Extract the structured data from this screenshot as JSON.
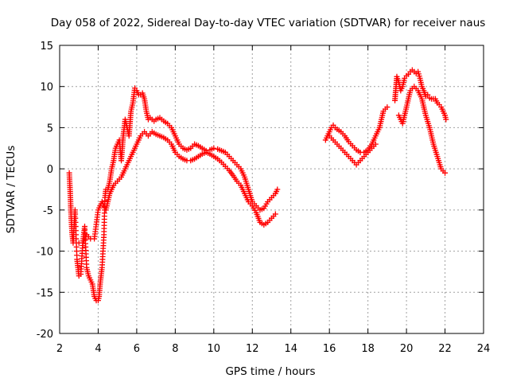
{
  "chart_data": {
    "type": "scatter",
    "title": "Day 058 of 2022, Sidereal Day-to-day VTEC variation (SDTVAR) for receiver naus",
    "xlabel": "GPS time / hours",
    "ylabel": "SDTVAR / TECUs",
    "xlim": [
      2,
      24
    ],
    "ylim": [
      -20,
      15
    ],
    "xticks": [
      2,
      4,
      6,
      8,
      10,
      12,
      14,
      16,
      18,
      20,
      22,
      24
    ],
    "yticks": [
      -20,
      -15,
      -10,
      -5,
      0,
      5,
      10,
      15
    ],
    "grid": true,
    "marker": "+",
    "color": "#ff0000",
    "series": [
      {
        "name": "segment-1",
        "x": [
          2.5,
          2.55,
          2.6,
          2.65,
          2.7,
          2.75,
          2.8,
          2.9,
          3.0,
          3.1,
          3.2,
          3.3,
          3.4,
          3.5,
          3.6,
          3.7,
          3.8,
          3.9,
          4.0,
          4.05,
          4.1,
          4.2,
          4.3,
          4.35,
          4.4,
          4.5,
          4.6,
          4.7,
          4.8,
          4.9,
          5.0,
          5.1,
          5.2,
          5.3,
          5.4,
          5.5,
          5.6,
          5.7,
          5.8,
          5.9,
          6.0,
          6.1,
          6.2,
          6.3,
          6.4,
          6.5,
          6.6,
          6.7,
          6.8,
          6.9,
          7.0,
          7.2,
          7.4,
          7.6,
          7.8,
          8.0,
          8.2,
          8.4,
          8.6,
          8.8,
          9.0,
          9.2,
          9.4,
          9.6,
          9.8,
          10.0,
          10.2,
          10.4,
          10.6,
          10.8,
          11.0,
          11.2,
          11.4,
          11.6,
          11.8,
          12.0,
          12.2,
          12.4,
          12.6,
          12.8,
          13.0,
          13.2,
          13.3
        ],
        "y": [
          -0.5,
          -3,
          -6,
          -8,
          -9,
          -7,
          -5,
          -11,
          -13,
          -12.8,
          -9,
          -7,
          -12,
          -13,
          -13.5,
          -14,
          -15.5,
          -16,
          -16,
          -15.5,
          -14,
          -12,
          -8,
          -3.5,
          -2.5,
          -2.5,
          -1.5,
          0,
          1,
          2.5,
          3,
          3.5,
          1,
          4,
          6,
          5,
          4,
          7,
          8,
          9.8,
          9.5,
          9,
          9,
          9.2,
          8.5,
          7,
          6,
          6.2,
          6,
          5.8,
          6,
          6.2,
          5.8,
          5.5,
          5,
          4,
          3,
          2.5,
          2.3,
          2.5,
          3,
          2.8,
          2.5,
          2.2,
          2.3,
          2.5,
          2.4,
          2.2,
          2,
          1.5,
          1,
          0.5,
          0,
          -1,
          -2.5,
          -4,
          -4.5,
          -5,
          -4.8,
          -4,
          -3.5,
          -3,
          -2.5
        ]
      },
      {
        "name": "segment-1-lower",
        "x": [
          3.0,
          3.2,
          3.4,
          3.6,
          3.8,
          4.0,
          4.2,
          4.4,
          4.6,
          4.8,
          5.0,
          5.2,
          5.4,
          5.6,
          5.8,
          6.0,
          6.2,
          6.4,
          6.6,
          6.8,
          7.0,
          7.2,
          7.4,
          7.6,
          7.8,
          8.0,
          8.2,
          8.4,
          8.6,
          8.8,
          9.0,
          9.2,
          9.4,
          9.6,
          9.8,
          10.0,
          10.2,
          10.4,
          10.6,
          10.8,
          11.0,
          11.2,
          11.4,
          11.6,
          11.8,
          12.0,
          12.2,
          12.4,
          12.6,
          12.8,
          13.0,
          13.2
        ],
        "y": [
          -9,
          -9,
          -8,
          -8.5,
          -8.5,
          -5,
          -4,
          -5,
          -3,
          -2,
          -1.5,
          -1,
          0,
          1,
          2,
          3,
          4,
          4.5,
          4,
          4.5,
          4.2,
          4,
          3.8,
          3.5,
          3,
          2,
          1.5,
          1.2,
          1,
          1,
          1.2,
          1.5,
          1.8,
          2,
          1.8,
          1.5,
          1.2,
          0.8,
          0.3,
          -0.2,
          -0.8,
          -1.5,
          -2,
          -3,
          -4,
          -4.5,
          -5.3,
          -6.5,
          -6.8,
          -6.5,
          -6,
          -5.5
        ]
      },
      {
        "name": "segment-2",
        "x": [
          15.8,
          15.9,
          16.0,
          16.1,
          16.2,
          16.3,
          16.4,
          16.6,
          16.8,
          17.0,
          17.2,
          17.4,
          17.6,
          17.8,
          18.0,
          18.2,
          18.4,
          18.6,
          18.8,
          19.0
        ],
        "y": [
          3.5,
          4,
          4.5,
          5,
          5.3,
          5,
          4.8,
          4.5,
          4,
          3.3,
          2.8,
          2.3,
          2,
          2,
          2.3,
          3,
          4,
          5,
          7,
          7.5
        ]
      },
      {
        "name": "segment-2-lower",
        "x": [
          16.0,
          16.2,
          16.4,
          16.6,
          16.8,
          17.0,
          17.2,
          17.4,
          17.6,
          17.8,
          18.0,
          18.2,
          18.4
        ],
        "y": [
          4,
          3.5,
          3,
          2.5,
          2,
          1.5,
          1,
          0.5,
          1,
          1.5,
          2,
          2.5,
          3
        ]
      },
      {
        "name": "segment-3",
        "x": [
          19.4,
          19.5,
          19.6,
          19.7,
          19.8,
          19.9,
          20.0,
          20.1,
          20.2,
          20.3,
          20.4,
          20.5,
          20.6,
          20.7,
          20.8,
          20.9,
          21.0,
          21.1,
          21.2,
          21.3,
          21.4,
          21.5,
          21.6,
          21.7,
          21.8,
          21.9,
          22.0,
          22.05
        ],
        "y": [
          8.3,
          11.2,
          10.5,
          9.5,
          10,
          11,
          11.3,
          11.5,
          11.8,
          12,
          11.8,
          11.6,
          11.8,
          11,
          10,
          9.5,
          8.8,
          9,
          8.6,
          8.5,
          8.5,
          8.5,
          8,
          7.8,
          7.5,
          7,
          6.5,
          6
        ]
      },
      {
        "name": "segment-3-lower",
        "x": [
          19.6,
          19.8,
          20.0,
          20.2,
          20.4,
          20.6,
          20.8,
          21.0,
          21.2,
          21.4,
          21.6,
          21.8,
          22.0
        ],
        "y": [
          6.5,
          5.5,
          7.5,
          9.5,
          10,
          9.5,
          8.5,
          6.5,
          5,
          3,
          1.5,
          0,
          -0.5
        ]
      }
    ]
  }
}
